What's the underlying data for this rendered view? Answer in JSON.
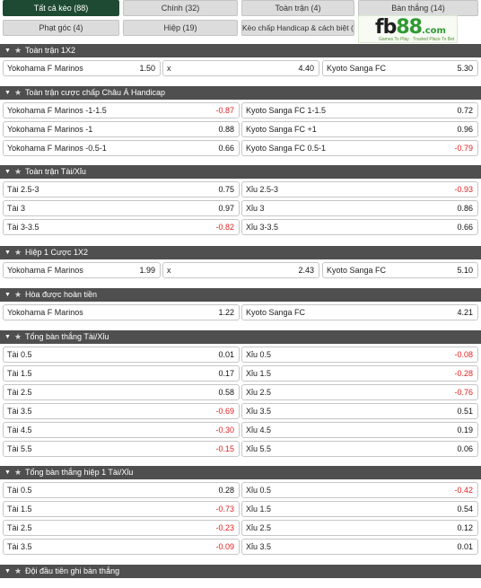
{
  "tabs": [
    {
      "label": "Tất cả kèo (88)",
      "active": true
    },
    {
      "label": "Chính (32)",
      "active": false
    },
    {
      "label": "Toàn trận (4)",
      "active": false
    },
    {
      "label": "Bàn thắng (14)",
      "active": false
    },
    {
      "label": "Phạt góc (4)",
      "active": false
    },
    {
      "label": "Hiệp (19)",
      "active": false
    },
    {
      "label": "Kèo chấp Handicap & cách biệt (3)",
      "active": false
    }
  ],
  "logo": {
    "main": "fb",
    "num": "88",
    "suffix": ".com",
    "tagline": "Games To Play · Trusted Place To Bet"
  },
  "colors": {
    "accent": "#1e4a33",
    "header": "#4f4f4f",
    "negative": "#e02020",
    "logo_green": "#2f9a32"
  },
  "icons": {
    "collapse": "chevron-down-icon",
    "favorite": "star-icon"
  },
  "sections": [
    {
      "title": "Toàn trận 1X2",
      "rows": [
        [
          {
            "label": "Yokohama F Marinos",
            "odd": "1.50"
          },
          {
            "label": "x",
            "odd": "4.40"
          },
          {
            "label": "Kyoto Sanga FC",
            "odd": "5.30"
          }
        ]
      ]
    },
    {
      "title": "Toàn trận cược chấp Châu Á Handicap",
      "rows": [
        [
          {
            "label": "Yokohama F Marinos -1-1.5",
            "odd": "-0.87"
          },
          {
            "label": "Kyoto Sanga FC 1-1.5",
            "odd": "0.72"
          }
        ],
        [
          {
            "label": "Yokohama F Marinos -1",
            "odd": "0.88"
          },
          {
            "label": "Kyoto Sanga FC +1",
            "odd": "0.96"
          }
        ],
        [
          {
            "label": "Yokohama F Marinos -0.5-1",
            "odd": "0.66"
          },
          {
            "label": "Kyoto Sanga FC 0.5-1",
            "odd": "-0.79"
          }
        ]
      ]
    },
    {
      "title": "Toàn trận Tài/Xỉu",
      "rows": [
        [
          {
            "label": "Tài 2.5-3",
            "odd": "0.75"
          },
          {
            "label": "Xỉu 2.5-3",
            "odd": "-0.93"
          }
        ],
        [
          {
            "label": "Tài 3",
            "odd": "0.97"
          },
          {
            "label": "Xỉu 3",
            "odd": "0.86"
          }
        ],
        [
          {
            "label": "Tài 3-3.5",
            "odd": "-0.82"
          },
          {
            "label": "Xỉu 3-3.5",
            "odd": "0.66"
          }
        ]
      ]
    },
    {
      "title": "Hiệp 1 Cược 1X2",
      "rows": [
        [
          {
            "label": "Yokohama F Marinos",
            "odd": "1.99"
          },
          {
            "label": "x",
            "odd": "2.43"
          },
          {
            "label": "Kyoto Sanga FC",
            "odd": "5.10"
          }
        ]
      ]
    },
    {
      "title": "Hòa được hoàn tiền",
      "rows": [
        [
          {
            "label": "Yokohama F Marinos",
            "odd": "1.22"
          },
          {
            "label": "Kyoto Sanga FC",
            "odd": "4.21"
          }
        ]
      ]
    },
    {
      "title": "Tổng bàn thắng Tài/Xỉu",
      "rows": [
        [
          {
            "label": "Tài 0.5",
            "odd": "0.01"
          },
          {
            "label": "Xỉu 0.5",
            "odd": "-0.08"
          }
        ],
        [
          {
            "label": "Tài 1.5",
            "odd": "0.17"
          },
          {
            "label": "Xỉu 1.5",
            "odd": "-0.28"
          }
        ],
        [
          {
            "label": "Tài 2.5",
            "odd": "0.58"
          },
          {
            "label": "Xỉu 2.5",
            "odd": "-0.76"
          }
        ],
        [
          {
            "label": "Tài 3.5",
            "odd": "-0.69"
          },
          {
            "label": "Xỉu 3.5",
            "odd": "0.51"
          }
        ],
        [
          {
            "label": "Tài 4.5",
            "odd": "-0.30"
          },
          {
            "label": "Xỉu 4.5",
            "odd": "0.19"
          }
        ],
        [
          {
            "label": "Tài 5.5",
            "odd": "-0.15"
          },
          {
            "label": "Xỉu 5.5",
            "odd": "0.06"
          }
        ]
      ]
    },
    {
      "title": "Tổng bàn thắng hiệp 1 Tài/Xỉu",
      "rows": [
        [
          {
            "label": "Tài 0.5",
            "odd": "0.28"
          },
          {
            "label": "Xỉu 0.5",
            "odd": "-0.42"
          }
        ],
        [
          {
            "label": "Tài 1.5",
            "odd": "-0.73"
          },
          {
            "label": "Xỉu 1.5",
            "odd": "0.54"
          }
        ],
        [
          {
            "label": "Tài 2.5",
            "odd": "-0.23"
          },
          {
            "label": "Xỉu 2.5",
            "odd": "0.12"
          }
        ],
        [
          {
            "label": "Tài 3.5",
            "odd": "-0.09"
          },
          {
            "label": "Xỉu 3.5",
            "odd": "0.01"
          }
        ]
      ]
    },
    {
      "title": "Đội đầu tiên ghi bàn thắng",
      "rows": []
    }
  ]
}
